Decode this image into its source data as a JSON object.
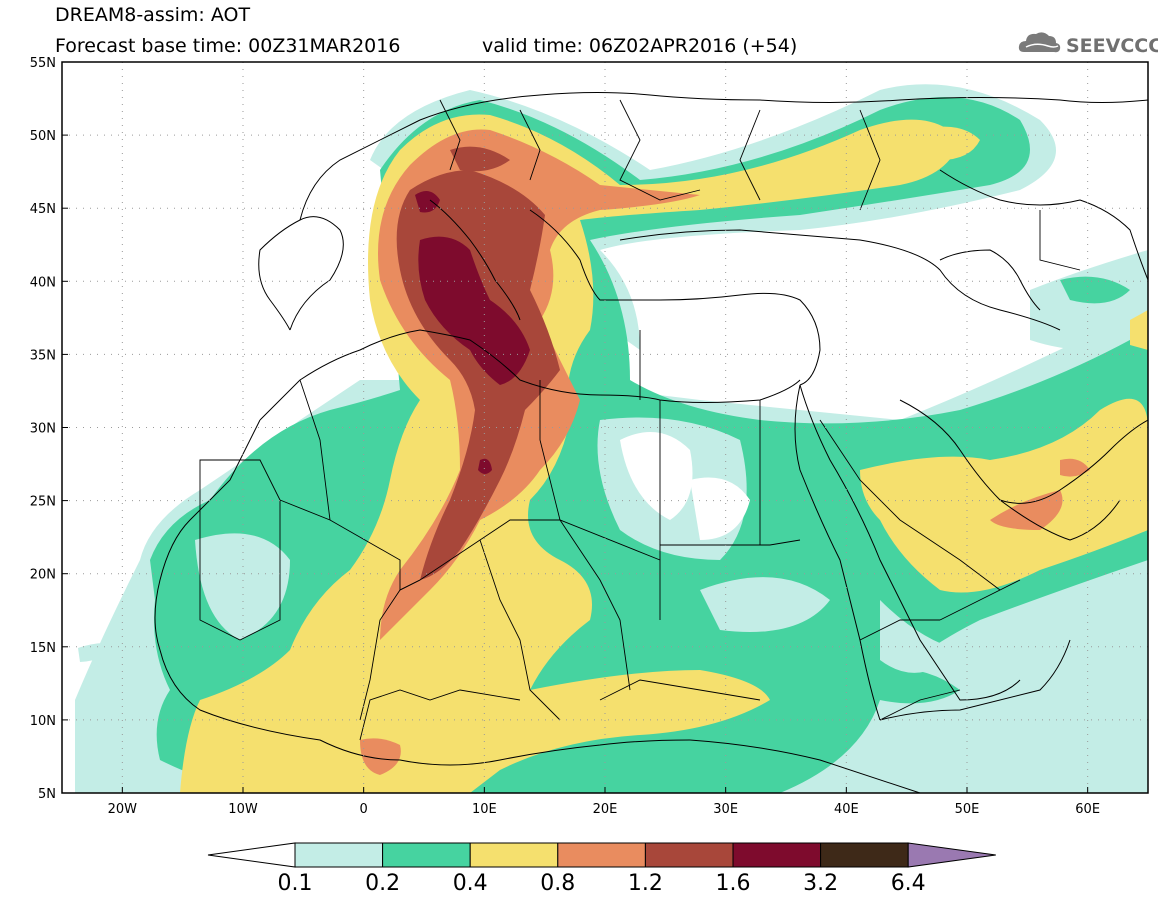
{
  "title": {
    "line1": "DREAM8-assim: AOT",
    "line2": "Forecast base time: 00Z31MAR2016",
    "line3": "valid time: 06Z02APR2016 (+54)"
  },
  "logo": {
    "text": "SEEVCCC",
    "icon": "cloud-icon"
  },
  "map": {
    "lon_range": [
      -25,
      65
    ],
    "lat_range": [
      5,
      55
    ],
    "lat_ticks": [
      "55N",
      "50N",
      "45N",
      "40N",
      "35N",
      "30N",
      "25N",
      "20N",
      "15N",
      "10N",
      "5N"
    ],
    "lon_ticks": [
      "20W",
      "10W",
      "0",
      "10E",
      "20E",
      "30E",
      "40E",
      "50E",
      "60E"
    ]
  },
  "legend": {
    "levels": [
      "0.1",
      "0.2",
      "0.4",
      "0.8",
      "1.2",
      "1.6",
      "3.2",
      "6.4"
    ],
    "colors": [
      "#c3ede6",
      "#46d3a0",
      "#f5e06e",
      "#e98c5f",
      "#a8473a",
      "#7e0b2d",
      "#3e2918",
      "#9a79b1"
    ]
  }
}
